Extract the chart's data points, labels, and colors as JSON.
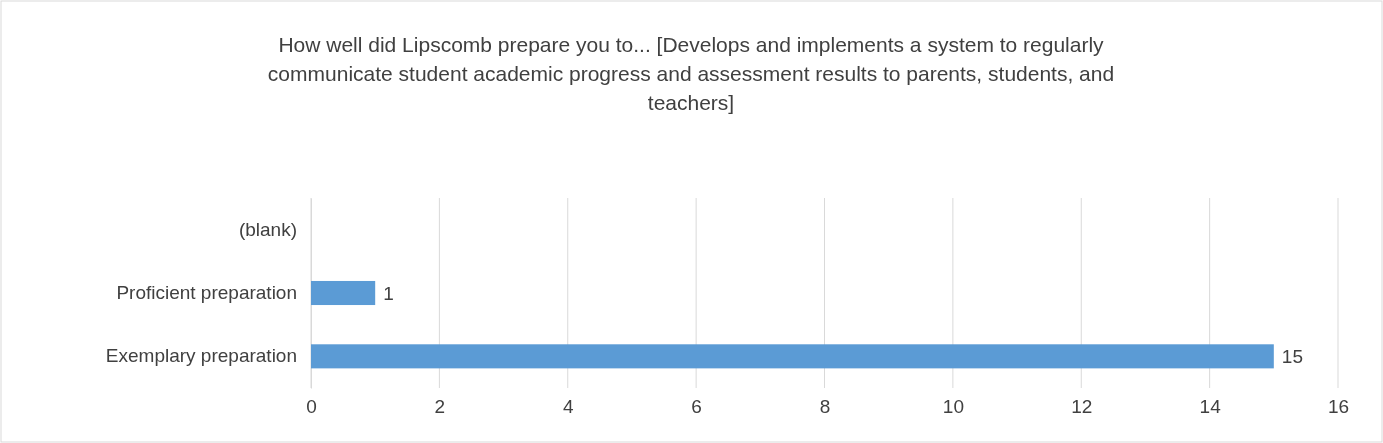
{
  "chart_data": {
    "type": "bar",
    "orientation": "horizontal",
    "title": "How well did Lipscomb prepare you to... [Develops and implements a system to regularly communicate student academic progress and assessment results to parents, students, and teachers]",
    "categories": [
      "(blank)",
      "Proficient preparation",
      "Exemplary preparation"
    ],
    "values": [
      null,
      1,
      15
    ],
    "color": "#5b9bd5",
    "data_labels": true,
    "xlim": [
      0,
      16
    ],
    "xticks": [
      0,
      2,
      4,
      6,
      8,
      10,
      12,
      14,
      16
    ],
    "grid": "x"
  }
}
